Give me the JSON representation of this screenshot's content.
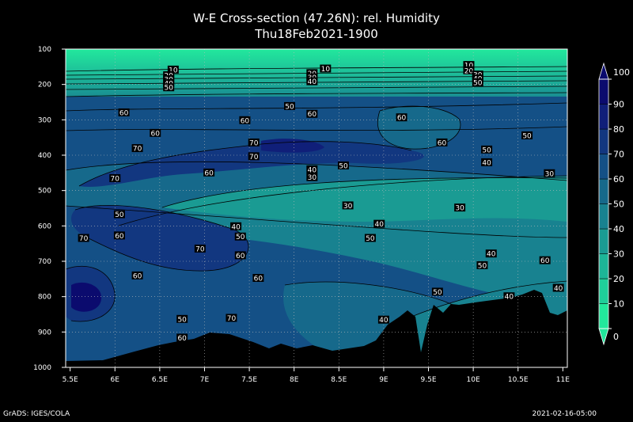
{
  "chart_data": {
    "type": "heatmap",
    "title": "W-E Cross-section (47.26N): rel. Humidity",
    "subtitle": "Thu18Feb2021-1900",
    "xlabel": "",
    "ylabel": "",
    "x_ticks": [
      "5.5E",
      "6E",
      "6.5E",
      "7E",
      "7.5E",
      "8E",
      "8.5E",
      "9E",
      "9.5E",
      "10E",
      "10.5E",
      "11E"
    ],
    "x_values": [
      5.5,
      6.0,
      6.5,
      7.0,
      7.5,
      8.0,
      8.5,
      9.0,
      9.5,
      10.0,
      10.5,
      11.0
    ],
    "y_ticks": [
      "100",
      "200",
      "300",
      "400",
      "500",
      "600",
      "700",
      "800",
      "900",
      "1000"
    ],
    "y_values": [
      100,
      200,
      300,
      400,
      500,
      600,
      700,
      800,
      900,
      1000
    ],
    "xlim": [
      5.45,
      11.05
    ],
    "ylim": [
      1000,
      100
    ],
    "grid": true,
    "colorbar": {
      "levels": [
        "0",
        "10",
        "20",
        "30",
        "40",
        "50",
        "60",
        "70",
        "80",
        "90",
        "100"
      ],
      "colors": [
        "#22e89c",
        "#1fcf9a",
        "#1db597",
        "#1a9b93",
        "#188290",
        "#16698b",
        "#145086",
        "#123780",
        "#101f79",
        "#0b0b6e"
      ]
    },
    "contour_labels": [
      {
        "text": "10",
        "x": 6.65,
        "y": 158
      },
      {
        "text": "20",
        "x": 6.6,
        "y": 174
      },
      {
        "text": "30",
        "x": 6.6,
        "y": 185
      },
      {
        "text": "40",
        "x": 6.6,
        "y": 196
      },
      {
        "text": "50",
        "x": 6.6,
        "y": 208
      },
      {
        "text": "10",
        "x": 8.35,
        "y": 155
      },
      {
        "text": "20",
        "x": 8.2,
        "y": 168
      },
      {
        "text": "30",
        "x": 8.2,
        "y": 180
      },
      {
        "text": "40",
        "x": 8.2,
        "y": 191
      },
      {
        "text": "10",
        "x": 9.95,
        "y": 145
      },
      {
        "text": "20",
        "x": 9.95,
        "y": 160
      },
      {
        "text": "30",
        "x": 10.05,
        "y": 172
      },
      {
        "text": "40",
        "x": 10.05,
        "y": 183
      },
      {
        "text": "50",
        "x": 10.05,
        "y": 194
      },
      {
        "text": "60",
        "x": 6.1,
        "y": 279
      },
      {
        "text": "50",
        "x": 7.95,
        "y": 261
      },
      {
        "text": "60",
        "x": 8.2,
        "y": 283
      },
      {
        "text": "60",
        "x": 7.45,
        "y": 301
      },
      {
        "text": "60",
        "x": 9.2,
        "y": 293
      },
      {
        "text": "60",
        "x": 6.45,
        "y": 337
      },
      {
        "text": "70",
        "x": 6.25,
        "y": 380
      },
      {
        "text": "70",
        "x": 7.55,
        "y": 364
      },
      {
        "text": "70",
        "x": 7.55,
        "y": 403
      },
      {
        "text": "60",
        "x": 9.65,
        "y": 364
      },
      {
        "text": "50",
        "x": 10.6,
        "y": 344
      },
      {
        "text": "50",
        "x": 10.15,
        "y": 384
      },
      {
        "text": "40",
        "x": 10.15,
        "y": 420
      },
      {
        "text": "30",
        "x": 10.85,
        "y": 451
      },
      {
        "text": "60",
        "x": 7.05,
        "y": 449
      },
      {
        "text": "40",
        "x": 8.2,
        "y": 440
      },
      {
        "text": "30",
        "x": 8.2,
        "y": 462
      },
      {
        "text": "50",
        "x": 8.55,
        "y": 429
      },
      {
        "text": "70",
        "x": 6.0,
        "y": 465
      },
      {
        "text": "30",
        "x": 8.6,
        "y": 542
      },
      {
        "text": "30",
        "x": 9.85,
        "y": 548
      },
      {
        "text": "50",
        "x": 6.05,
        "y": 567
      },
      {
        "text": "40",
        "x": 7.35,
        "y": 601
      },
      {
        "text": "40",
        "x": 8.95,
        "y": 594
      },
      {
        "text": "50",
        "x": 8.85,
        "y": 634
      },
      {
        "text": "60",
        "x": 6.05,
        "y": 627
      },
      {
        "text": "70",
        "x": 5.65,
        "y": 634
      },
      {
        "text": "50",
        "x": 7.4,
        "y": 630
      },
      {
        "text": "70",
        "x": 6.95,
        "y": 664
      },
      {
        "text": "60",
        "x": 7.4,
        "y": 683
      },
      {
        "text": "40",
        "x": 10.2,
        "y": 678
      },
      {
        "text": "50",
        "x": 10.1,
        "y": 711
      },
      {
        "text": "60",
        "x": 10.8,
        "y": 697
      },
      {
        "text": "60",
        "x": 6.25,
        "y": 740
      },
      {
        "text": "60",
        "x": 7.6,
        "y": 747
      },
      {
        "text": "50",
        "x": 9.6,
        "y": 786
      },
      {
        "text": "40",
        "x": 10.95,
        "y": 775
      },
      {
        "text": "40",
        "x": 10.4,
        "y": 799
      },
      {
        "text": "50",
        "x": 6.75,
        "y": 863
      },
      {
        "text": "70",
        "x": 7.3,
        "y": 860
      },
      {
        "text": "60",
        "x": 6.75,
        "y": 916
      },
      {
        "text": "40",
        "x": 9.0,
        "y": 865
      }
    ]
  },
  "footer": {
    "left": "GrADS: IGES/COLA",
    "right": "2021-02-16-05:00"
  }
}
